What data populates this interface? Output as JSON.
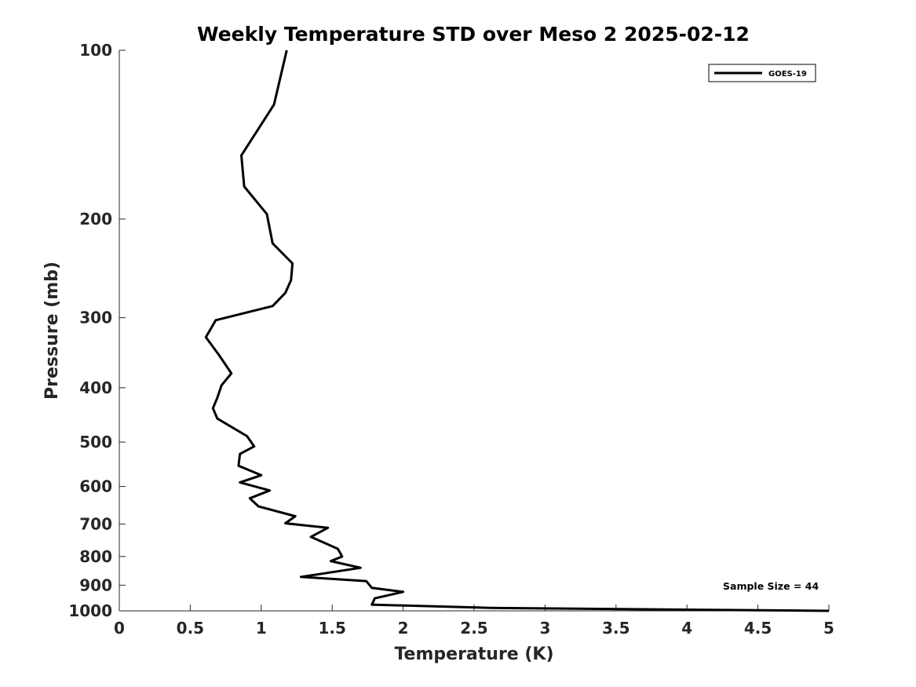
{
  "chart_data": {
    "type": "line",
    "title": "Weekly Temperature STD over Meso 2 2025-02-12",
    "xlabel": "Temperature (K)",
    "ylabel": "Pressure (mb)",
    "xlim": [
      0,
      5
    ],
    "ylim": [
      100,
      1000
    ],
    "yscale": "log",
    "yreversed": true,
    "grid": false,
    "x_ticks": [
      0,
      0.5,
      1,
      1.5,
      2,
      2.5,
      3,
      3.5,
      4,
      4.5,
      5
    ],
    "x_tick_labels": [
      "0",
      "0.5",
      "1",
      "1.5",
      "2",
      "2.5",
      "3",
      "3.5",
      "4",
      "4.5",
      "5"
    ],
    "y_ticks": [
      100,
      200,
      300,
      400,
      500,
      600,
      700,
      800,
      900,
      1000
    ],
    "y_tick_labels": [
      "100",
      "200",
      "300",
      "400",
      "500",
      "600",
      "700",
      "800",
      "900",
      "1000"
    ],
    "legend_position": "top-right",
    "series": [
      {
        "name": "GOES-19",
        "color": "#000000",
        "temperature": [
          1.18,
          1.09,
          0.86,
          0.88,
          1.04,
          1.08,
          1.22,
          1.21,
          1.17,
          1.08,
          0.68,
          0.61,
          0.7,
          0.79,
          0.72,
          0.69,
          0.66,
          0.69,
          0.9,
          0.95,
          0.85,
          0.84,
          1.0,
          0.85,
          1.06,
          0.92,
          0.98,
          1.24,
          1.17,
          1.47,
          1.35,
          1.54,
          1.57,
          1.49,
          1.7,
          1.28,
          1.74,
          1.78,
          2.0,
          1.8,
          1.78,
          2.62,
          5.0
        ],
        "pressure": [
          100,
          125,
          154,
          175,
          196,
          221,
          240,
          257,
          271,
          286,
          303,
          325,
          349,
          377,
          396,
          417,
          435,
          454,
          488,
          509,
          525,
          551,
          573,
          590,
          610,
          630,
          651,
          678,
          698,
          711,
          738,
          775,
          800,
          815,
          838,
          870,
          885,
          910,
          925,
          950,
          975,
          988,
          1000
        ]
      }
    ],
    "annotations": [
      {
        "text": "Sample Size = 44",
        "position": "bottom-right"
      }
    ]
  }
}
